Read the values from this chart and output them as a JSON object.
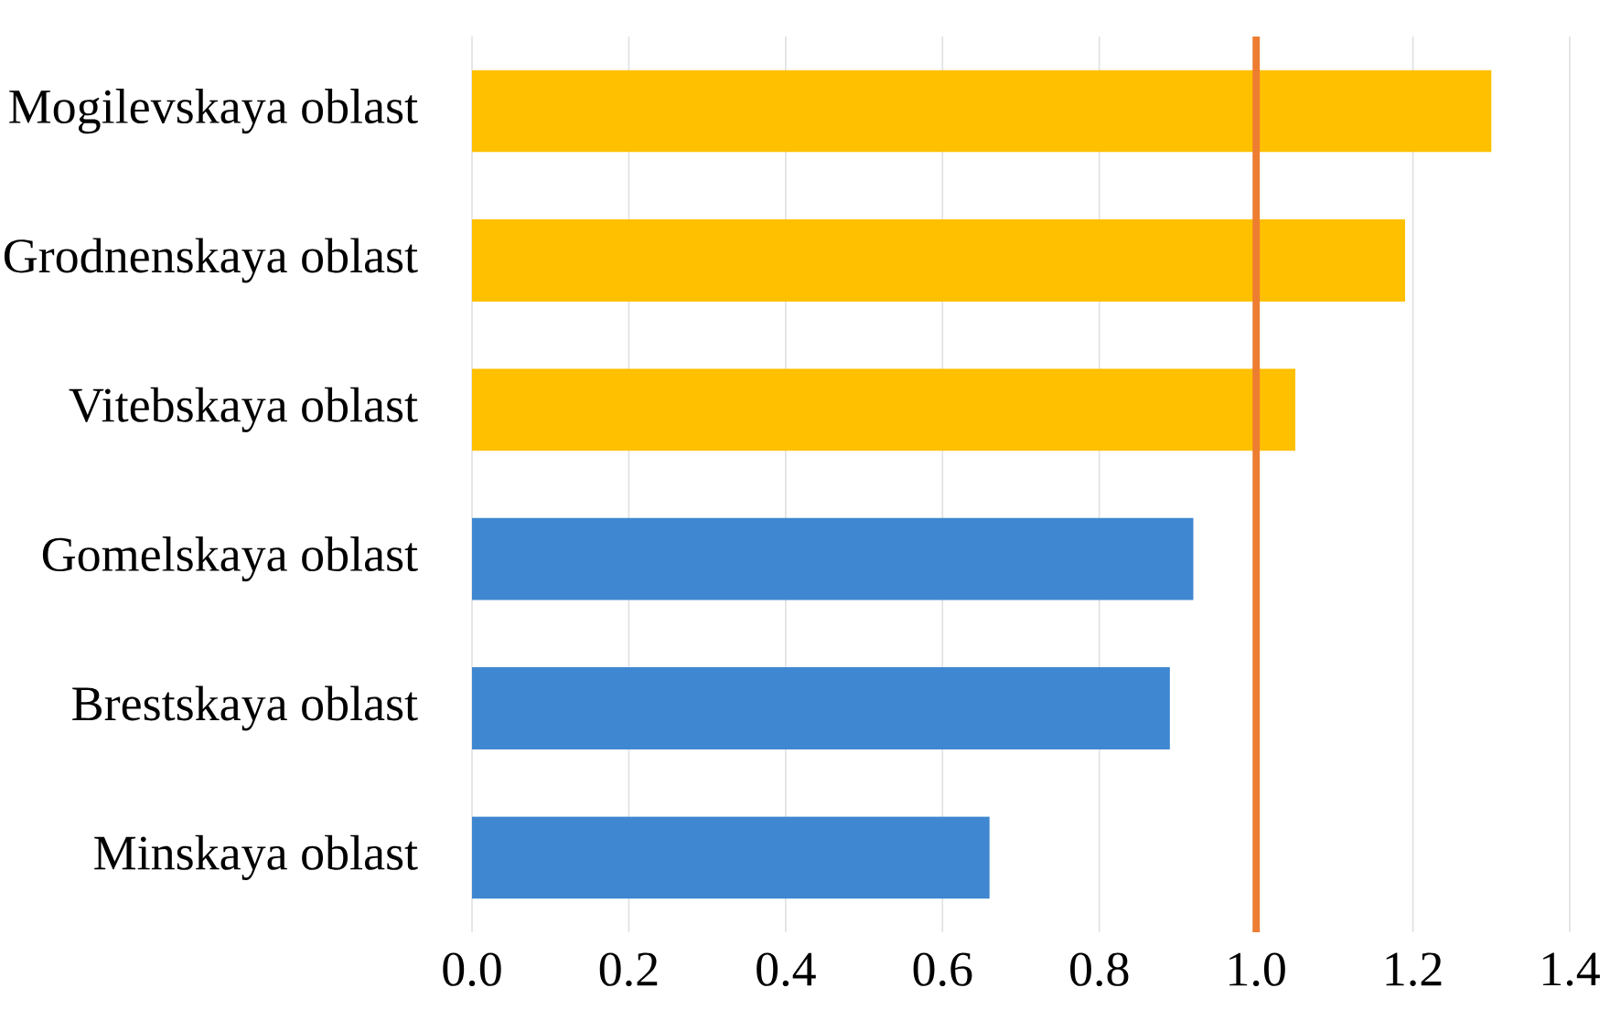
{
  "chart_data": {
    "type": "bar",
    "orientation": "horizontal",
    "categories": [
      "Mogilevskaya oblast",
      "Grodnenskaya oblast",
      "Vitebskaya oblast",
      "Gomelskaya oblast",
      "Brestskaya oblast",
      "Minskaya oblast"
    ],
    "values": [
      1.3,
      1.19,
      1.05,
      0.92,
      0.89,
      0.66
    ],
    "colors": [
      "#ffc000",
      "#ffc000",
      "#ffc000",
      "#3f87d0",
      "#3f87d0",
      "#3f87d0"
    ],
    "xlim": [
      0,
      1.4
    ],
    "xticks": [
      {
        "value": 0,
        "label": "0.0"
      },
      {
        "value": 0.2,
        "label": "0.2"
      },
      {
        "value": 0.4,
        "label": "0.4"
      },
      {
        "value": 0.6,
        "label": "0.6"
      },
      {
        "value": 0.8,
        "label": "0.8"
      },
      {
        "value": 1.0,
        "label": "1.0"
      },
      {
        "value": 1.2,
        "label": "1.2"
      },
      {
        "value": 1.4,
        "label": "1.4"
      }
    ],
    "grid": "x",
    "ref_lines": [
      {
        "axis": "x",
        "value": 1.0,
        "color": "#ed7d31"
      }
    ]
  }
}
